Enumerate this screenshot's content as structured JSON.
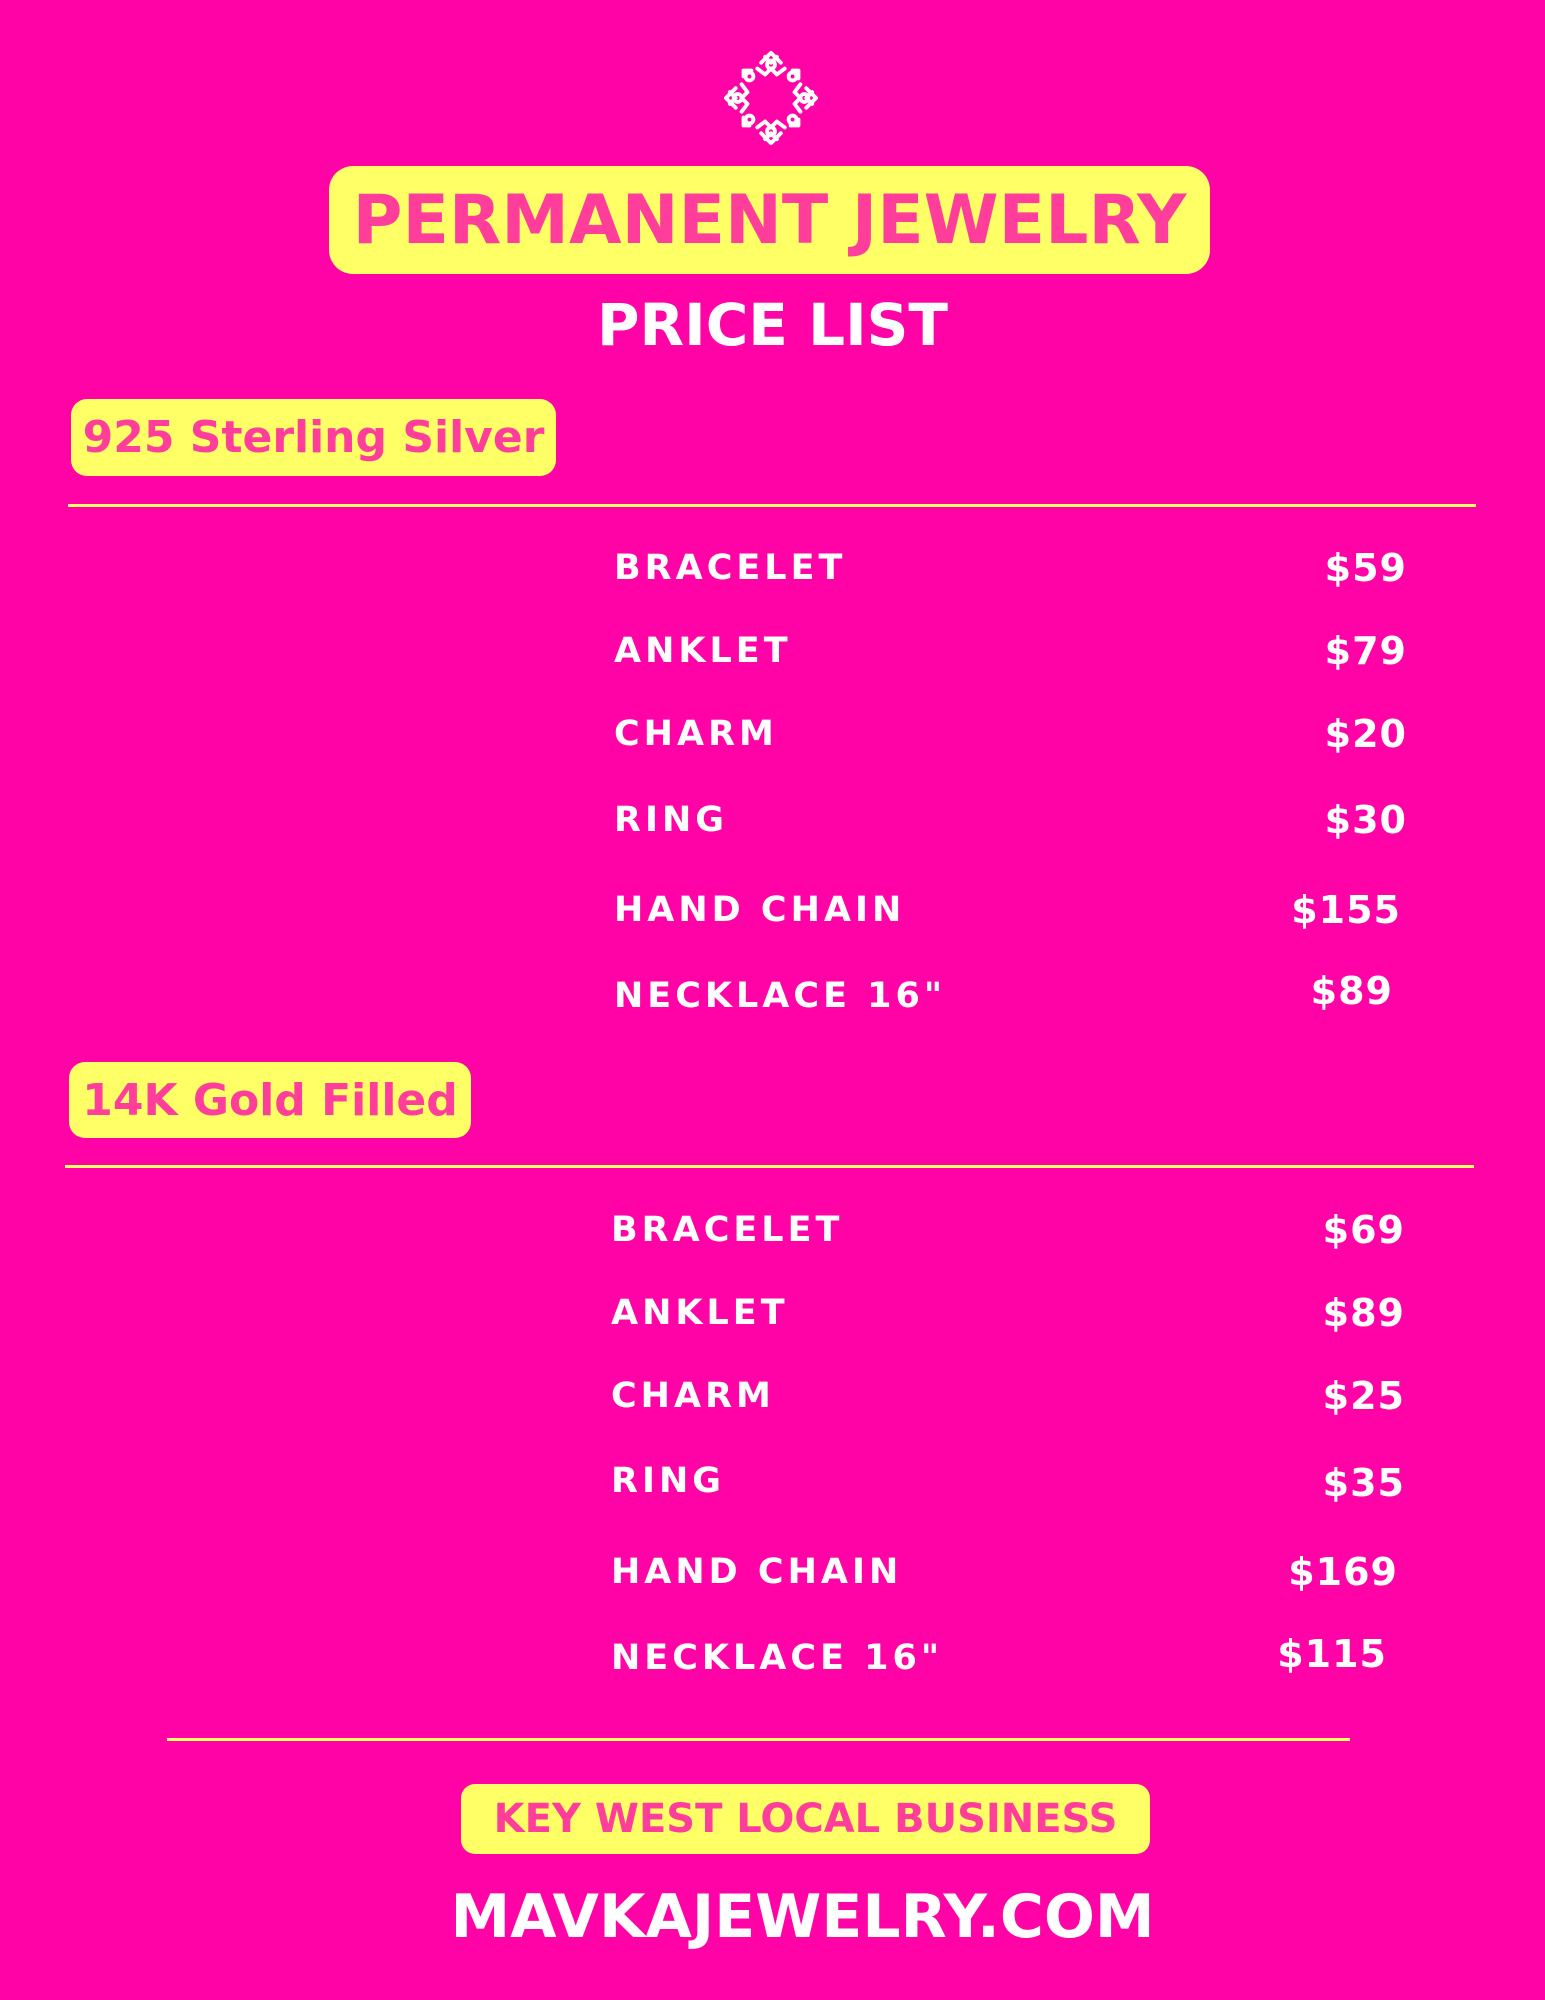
{
  "logo": {
    "icon": "ornamental-knot-wreath-icon",
    "color": "#ffffff"
  },
  "header": {
    "title": "PERMANENT JEWELRY",
    "subtitle": "PRICE LIST"
  },
  "colors": {
    "background": "#ff03a6",
    "accent": "#ffff66",
    "accent_text": "#ff3d9a",
    "text": "#ffffff"
  },
  "sections": [
    {
      "title": "925 Sterling Silver",
      "items": [
        {
          "name": "BRACELET",
          "price": "$59"
        },
        {
          "name": "ANKLET",
          "price": "$79"
        },
        {
          "name": "CHARM",
          "price": "$20"
        },
        {
          "name": "RING",
          "price": "$30"
        },
        {
          "name": "HAND CHAIN",
          "price": "$155"
        },
        {
          "name": "NECKLACE 16\"",
          "price": "$89"
        }
      ]
    },
    {
      "title": "14K Gold Filled",
      "items": [
        {
          "name": "BRACELET",
          "price": "$69"
        },
        {
          "name": "ANKLET",
          "price": "$89"
        },
        {
          "name": "CHARM",
          "price": "$25"
        },
        {
          "name": "RING",
          "price": "$35"
        },
        {
          "name": "HAND CHAIN",
          "price": "$169"
        },
        {
          "name": "NECKLACE 16\"",
          "price": "$115"
        }
      ]
    }
  ],
  "footer": {
    "tagline": "KEY WEST LOCAL BUSINESS",
    "website": "MAVKAJEWELRY.COM"
  }
}
